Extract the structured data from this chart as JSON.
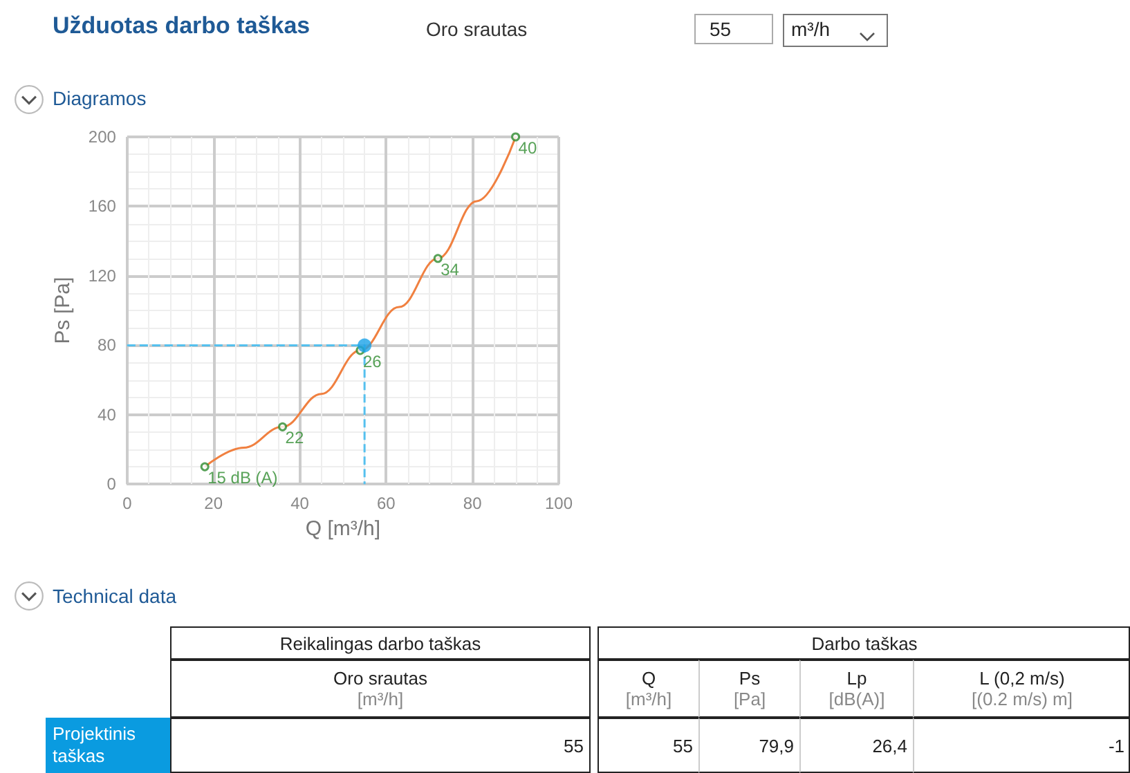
{
  "chart_data": {
    "type": "line",
    "title": "Užduotas darbo taškas",
    "xlabel": "Q [m³/h]",
    "ylabel": "Ps [Pa]",
    "xlim": [
      0,
      100
    ],
    "xticks": [
      0,
      20,
      40,
      60,
      80,
      100
    ],
    "ylim": [
      0,
      200
    ],
    "yticks": [
      0,
      40,
      80,
      120,
      160,
      200
    ],
    "grid": true,
    "series": [
      {
        "type": "line",
        "color": "#f08040",
        "marker": "none",
        "x": [
          18,
          27,
          36,
          45,
          54,
          63,
          72,
          81,
          90
        ],
        "values": [
          10,
          21,
          33,
          52,
          77,
          102,
          130,
          163,
          200
        ]
      },
      {
        "type": "scatter",
        "color": "#2e8b2e",
        "marker": "circle",
        "x": [
          18,
          36,
          54,
          72,
          90
        ],
        "values": [
          10,
          33,
          77,
          130,
          200
        ]
      },
      {
        "type": "line",
        "color": "#55c0ee",
        "marker": "none",
        "line_style": "dashed",
        "x": [
          0,
          55,
          55
        ],
        "values": [
          79.9,
          79.9,
          0
        ]
      },
      {
        "type": "scatter",
        "color": "#1aa3e8",
        "marker": "circle",
        "x": [
          55
        ],
        "values": [
          79.9
        ]
      }
    ],
    "annotations": [
      "Oro srautas",
      "55",
      "m³/h",
      "Diagramos",
      "Technical data",
      "Reikalingas darbo taškas",
      "Darbo taškas",
      "Oro srautas",
      "[m³/h]",
      "Q",
      "[m³/h]",
      "Ps",
      "[Pa]",
      "Lp",
      "[dB(A)]",
      "L (0,2 m/s)",
      "[(0.2 m/s) m]",
      "Projektinis taškas",
      "55",
      "55",
      "79,9",
      "26,4",
      "-1",
      {
        "text": "15 dB (A)",
        "x": 18,
        "y": 10
      },
      {
        "text": "22",
        "x": 36,
        "y": 33
      },
      {
        "text": "26",
        "x": 54,
        "y": 77
      },
      {
        "text": "34",
        "x": 72,
        "y": 130
      },
      {
        "text": "40",
        "x": 90,
        "y": 200
      }
    ]
  }
}
